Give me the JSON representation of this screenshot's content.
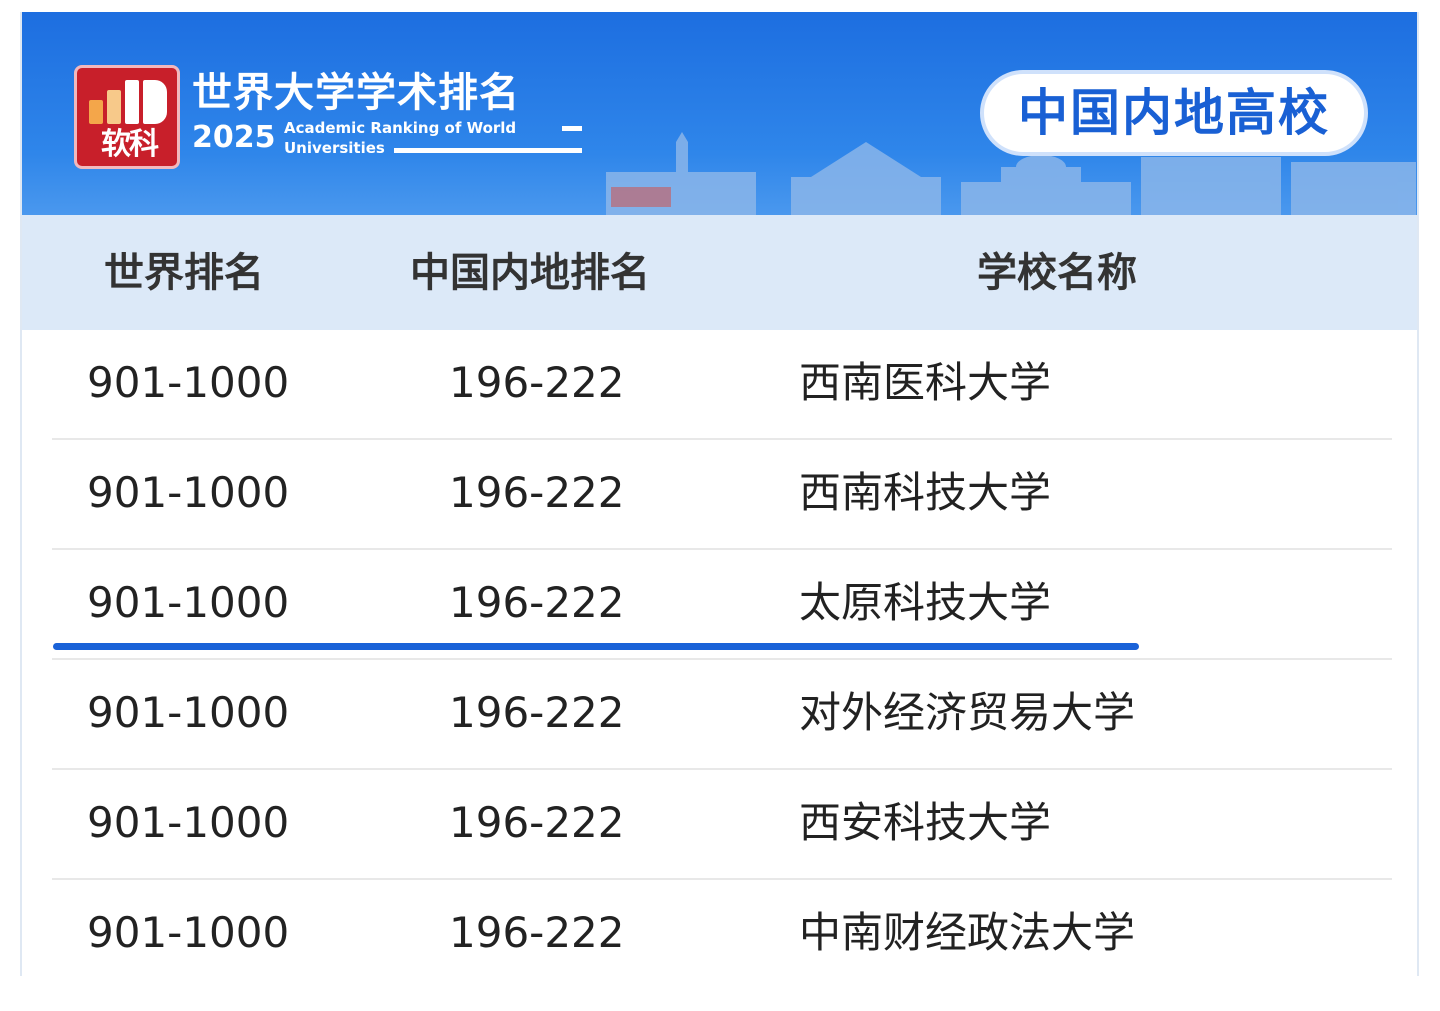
{
  "banner": {
    "logo_text": "软科",
    "title": "世界大学学术排名",
    "year": "2025",
    "subtitle_line1": "Academic Ranking of  World",
    "subtitle_line2": "Universities",
    "badge": "中国内地高校"
  },
  "table": {
    "headers": [
      "世界排名",
      "中国内地排名",
      "学校名称"
    ],
    "rows": [
      {
        "world": "901-1000",
        "china": "196-222",
        "name": "西南医科大学"
      },
      {
        "world": "901-1000",
        "china": "196-222",
        "name": "西南科技大学"
      },
      {
        "world": "901-1000",
        "china": "196-222",
        "name": "太原科技大学",
        "highlighted": true
      },
      {
        "world": "901-1000",
        "china": "196-222",
        "name": "对外经济贸易大学"
      },
      {
        "world": "901-1000",
        "china": "196-222",
        "name": "西安科技大学"
      },
      {
        "world": "901-1000",
        "china": "196-222",
        "name": "中南财经政法大学"
      }
    ]
  },
  "colors": {
    "banner": "#1d6ee0",
    "header_bg": "#dce9f8",
    "highlight": "#1a62d8",
    "logo": "#c81f2a"
  }
}
